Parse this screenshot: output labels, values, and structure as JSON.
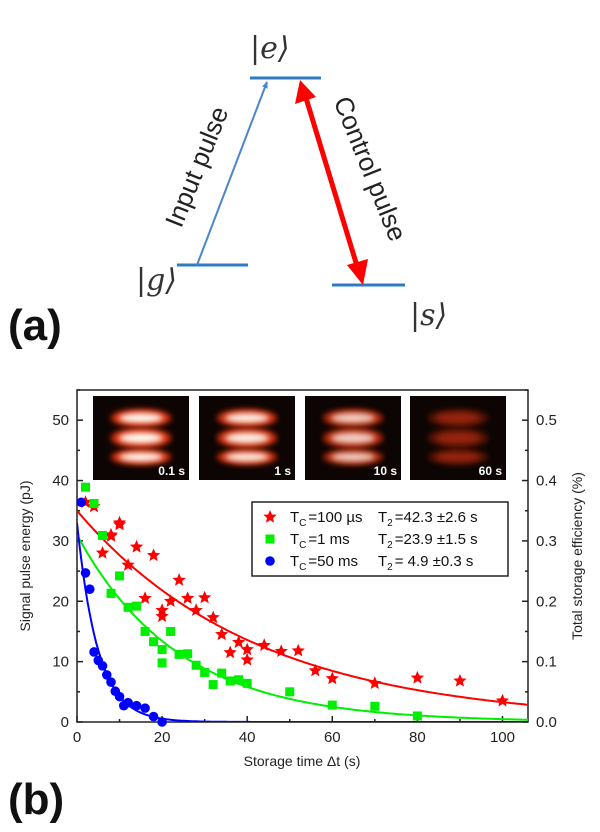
{
  "panel_a": {
    "label": "(a)",
    "levels": {
      "e": "|e⟩",
      "g": "|g⟩",
      "s": "|s⟩"
    },
    "input_label": "Input pulse",
    "control_label": "Control pulse",
    "colors": {
      "level": "#2e7bc4",
      "input": "#4a86c8",
      "control": "#ff0000"
    }
  },
  "panel_b": {
    "label": "(b)",
    "insets": [
      {
        "label": "0.1 s",
        "brightness": 1.0
      },
      {
        "label": "1 s",
        "brightness": 0.95
      },
      {
        "label": "10 s",
        "brightness": 0.8
      },
      {
        "label": "60 s",
        "brightness": 0.35
      }
    ]
  },
  "chart_data": {
    "type": "scatter",
    "xlabel": "Storage time Δt (s)",
    "ylabel": "Signal pulse energy (pJ)",
    "y2label": "Total storage efficiency (%)",
    "xlim": [
      0,
      106
    ],
    "ylim": [
      0,
      55
    ],
    "y2lim": [
      0,
      0.55
    ],
    "xticks": [
      "0",
      "20",
      "40",
      "60",
      "80",
      "100"
    ],
    "yticks": [
      "0",
      "10",
      "20",
      "30",
      "40",
      "50"
    ],
    "y2ticks": [
      "0.0",
      "0.1",
      "0.2",
      "0.3",
      "0.4",
      "0.5"
    ],
    "legend_position": "center-right",
    "series": [
      {
        "name": "Tc=100 µs",
        "tc_label": "T",
        "tc_sub": "C",
        "tc_value": "=100 µs",
        "t2_label": "T",
        "t2_sub": "2",
        "t2_value": "=42.3 ±2.6 s",
        "marker": "star",
        "color": "#ff0000",
        "fit": {
          "a": 35,
          "tau": 42.3
        },
        "points": [
          [
            2,
            36.4
          ],
          [
            4,
            35.7
          ],
          [
            6,
            28
          ],
          [
            8,
            31
          ],
          [
            8,
            30.8
          ],
          [
            10,
            33
          ],
          [
            10,
            32.7
          ],
          [
            12,
            26
          ],
          [
            14,
            29
          ],
          [
            16,
            20.5
          ],
          [
            18,
            27.6
          ],
          [
            20,
            18.5
          ],
          [
            20,
            17.5
          ],
          [
            22,
            20
          ],
          [
            24,
            23.5
          ],
          [
            26,
            20.5
          ],
          [
            28,
            18.5
          ],
          [
            30,
            20.6
          ],
          [
            32,
            17.3
          ],
          [
            34,
            14.5
          ],
          [
            36,
            11.5
          ],
          [
            38,
            13.2
          ],
          [
            40,
            12
          ],
          [
            40,
            10.3
          ],
          [
            44,
            12.7
          ],
          [
            48,
            11.7
          ],
          [
            52,
            11.8
          ],
          [
            56,
            8.5
          ],
          [
            60,
            7.2
          ],
          [
            70,
            6.4
          ],
          [
            80,
            7.3
          ],
          [
            90,
            6.8
          ],
          [
            100,
            3.5
          ]
        ]
      },
      {
        "name": "Tc=1 ms",
        "tc_label": "T",
        "tc_sub": "C",
        "tc_value": "=1 ms",
        "t2_label": "T",
        "t2_sub": "2",
        "t2_value": "=23.9 ±1.5 s",
        "marker": "square",
        "color": "#00ee00",
        "fit": {
          "a": 31,
          "tau": 23.9
        },
        "points": [
          [
            2,
            38.9
          ],
          [
            4,
            36.2
          ],
          [
            6,
            30.9
          ],
          [
            8,
            21.3
          ],
          [
            10,
            24.2
          ],
          [
            12,
            19
          ],
          [
            14,
            19.2
          ],
          [
            16,
            15
          ],
          [
            18,
            13.3
          ],
          [
            20,
            12
          ],
          [
            20,
            9.8
          ],
          [
            22,
            15
          ],
          [
            24,
            11.2
          ],
          [
            26,
            11.3
          ],
          [
            28,
            9.4
          ],
          [
            30,
            8.2
          ],
          [
            32,
            6.2
          ],
          [
            34,
            8.1
          ],
          [
            36,
            6.8
          ],
          [
            38,
            7
          ],
          [
            40,
            6.4
          ],
          [
            50,
            5
          ],
          [
            60,
            2.8
          ],
          [
            70,
            2.6
          ],
          [
            80,
            1.0
          ]
        ]
      },
      {
        "name": "Tc=50 ms",
        "tc_label": "T",
        "tc_sub": "C",
        "tc_value": "=50 ms",
        "t2_label": "T",
        "t2_sub": "2",
        "t2_value": "=  4.9 ±0.3 s",
        "marker": "circle",
        "color": "#0000ff",
        "fit": {
          "a": 33,
          "tau": 4.9
        },
        "points": [
          [
            1,
            36.4
          ],
          [
            2,
            24.7
          ],
          [
            3,
            22
          ],
          [
            4,
            11.6
          ],
          [
            5,
            10.2
          ],
          [
            6,
            9.3
          ],
          [
            7,
            7.8
          ],
          [
            8,
            6.6
          ],
          [
            9,
            5.1
          ],
          [
            10,
            4.2
          ],
          [
            11,
            2.7
          ],
          [
            12,
            3.2
          ],
          [
            14,
            2.7
          ],
          [
            16,
            2.3
          ],
          [
            18,
            0.9
          ],
          [
            20,
            0
          ]
        ]
      }
    ]
  }
}
